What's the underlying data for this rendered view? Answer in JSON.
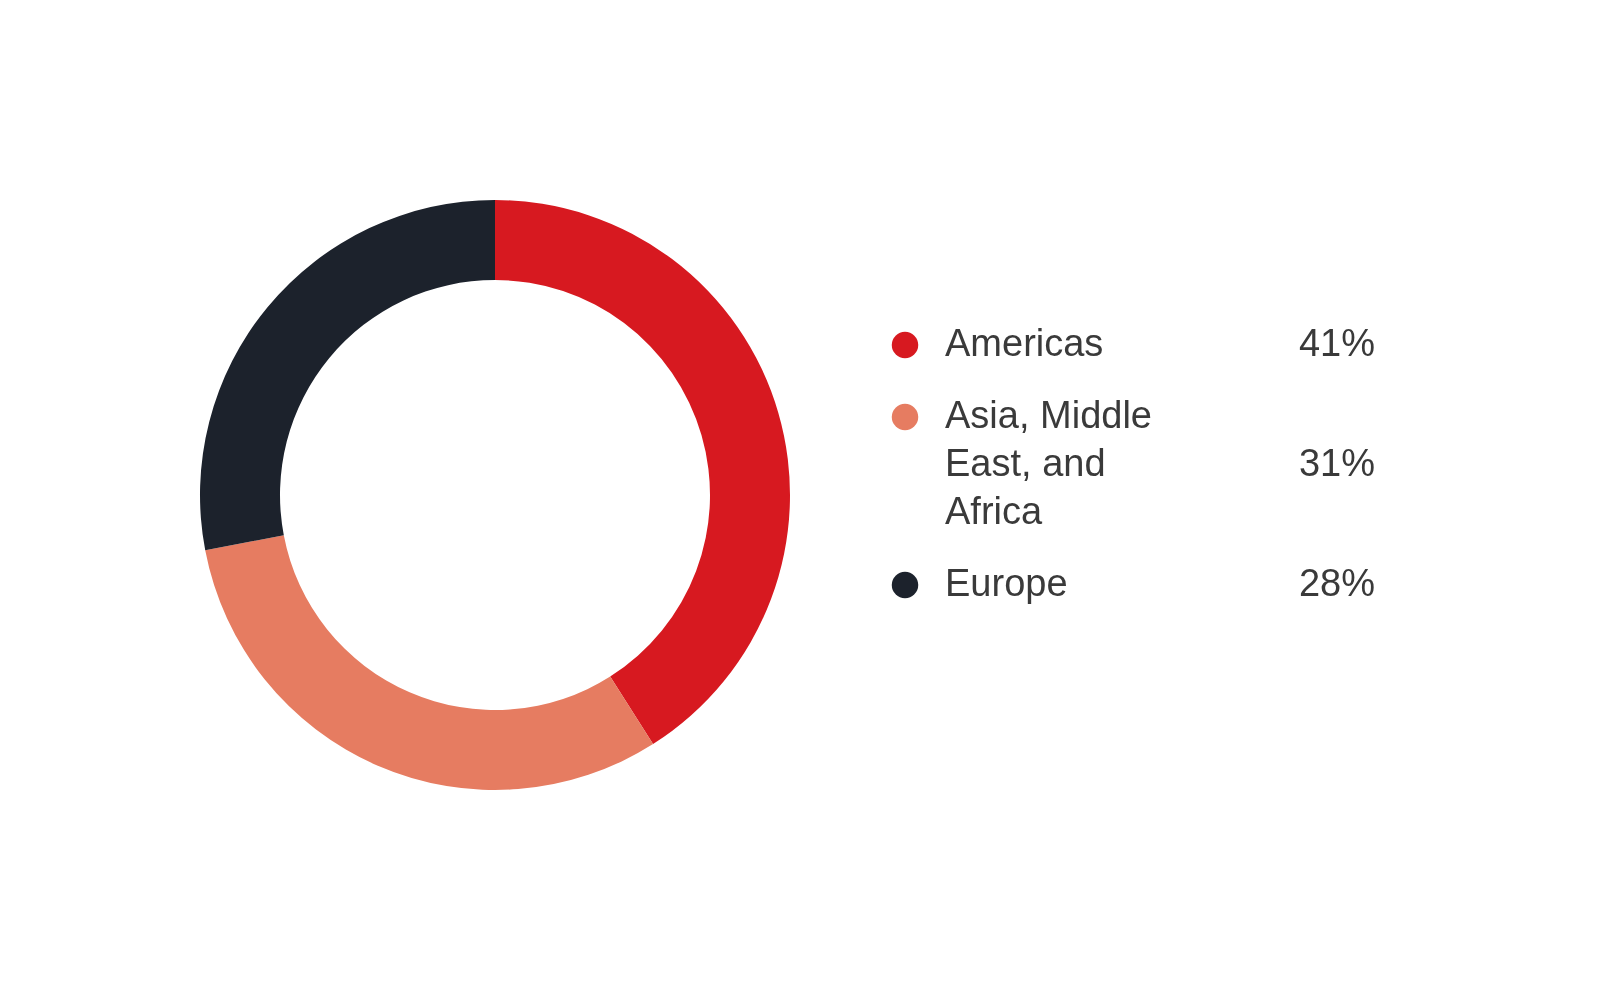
{
  "chart_data": {
    "type": "donut",
    "categories": [
      "Americas",
      "Asia, Middle East, and Africa",
      "Europe"
    ],
    "values": [
      41,
      31,
      28
    ],
    "colors": [
      "#d71920",
      "#e67c61",
      "#1c222c"
    ],
    "value_labels": [
      "41%",
      "31%",
      "28%"
    ],
    "legend": "right"
  }
}
